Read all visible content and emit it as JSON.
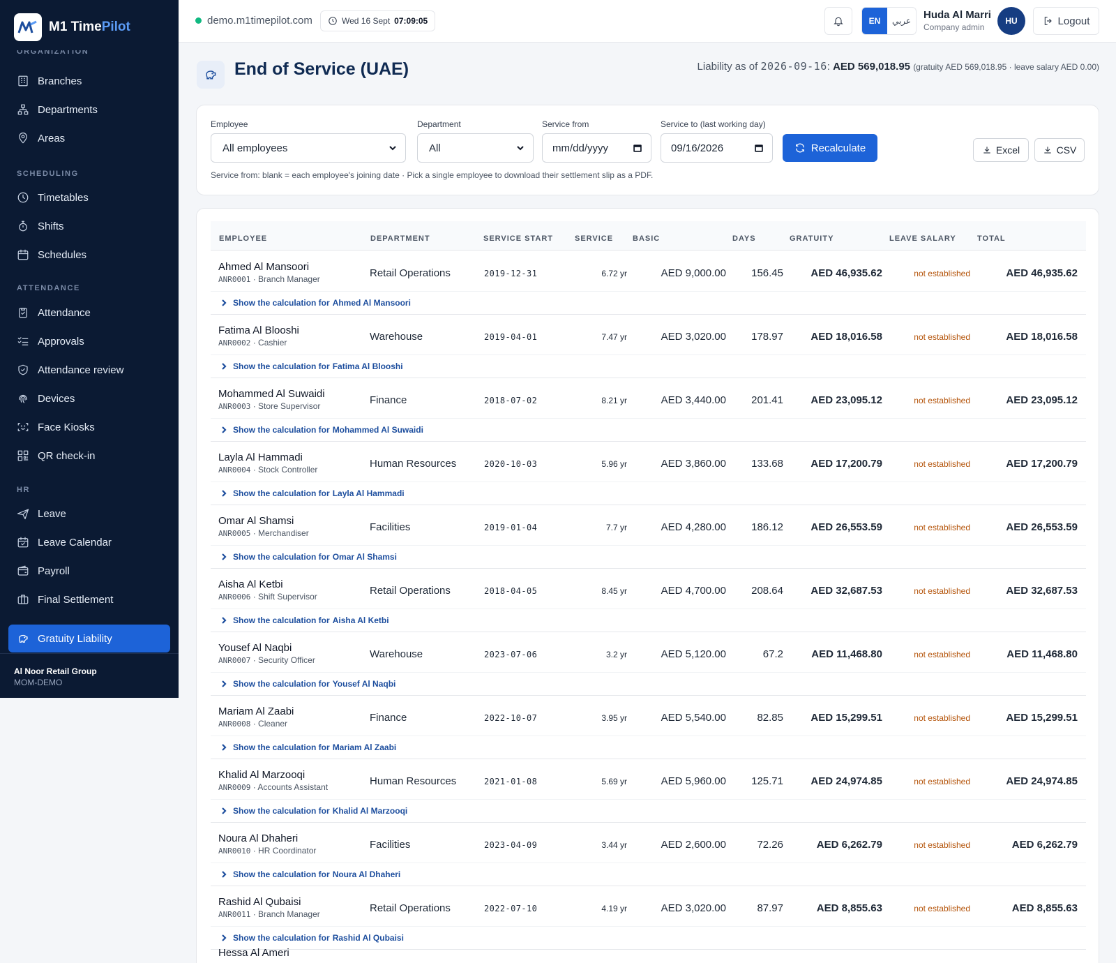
{
  "brand": {
    "name_main": "M1 Time",
    "name_accent": "Pilot"
  },
  "sidebar": {
    "clipped_section": "ORGANIZATION",
    "sections": {
      "scheduling": "SCHEDULING",
      "attendance": "ATTENDANCE",
      "hr": "HR"
    },
    "items": [
      {
        "label": "Branches"
      },
      {
        "label": "Departments"
      },
      {
        "label": "Areas"
      },
      {
        "label": "Timetables"
      },
      {
        "label": "Shifts"
      },
      {
        "label": "Schedules"
      },
      {
        "label": "Attendance"
      },
      {
        "label": "Approvals"
      },
      {
        "label": "Attendance review"
      },
      {
        "label": "Devices"
      },
      {
        "label": "Face Kiosks"
      },
      {
        "label": "QR check-in"
      },
      {
        "label": "Leave"
      },
      {
        "label": "Leave Calendar"
      },
      {
        "label": "Payroll"
      },
      {
        "label": "Final Settlement"
      },
      {
        "label": "Gratuity Liability"
      }
    ],
    "footer": {
      "org": "Al Noor Retail Group",
      "code": "MOM-DEMO"
    }
  },
  "topbar": {
    "domain": "demo.m1timepilot.com",
    "date": "Wed 16 Sept",
    "time": "07:09:05",
    "lang_en": "EN",
    "lang_ar": "عربي",
    "user_name": "Huda Al Marri",
    "user_role": "Company admin",
    "avatar": "HU",
    "logout": "Logout"
  },
  "header": {
    "title": "End of Service (UAE)",
    "liability_prefix": "Liability as of",
    "liability_date": "2026-09-16",
    "liability_total": "AED 569,018.95",
    "liability_detail": "(gratuity AED 569,018.95 · leave salary AED 0.00)"
  },
  "filters": {
    "employee_label": "Employee",
    "employee_value": "All employees",
    "department_label": "Department",
    "department_value": "All",
    "from_label": "Service from",
    "from_value": "mm/dd/yyyy",
    "to_label": "Service to (last working day)",
    "to_value": "09/16/2026",
    "recalc": "Recalculate",
    "excel": "Excel",
    "csv": "CSV",
    "hint": "Service from: blank = each employee's joining date · Pick a single employee to download their settlement slip as a PDF."
  },
  "table": {
    "headers": {
      "employee": "EMPLOYEE",
      "department": "DEPARTMENT",
      "start": "SERVICE START",
      "service": "SERVICE",
      "basic": "BASIC",
      "days": "DAYS",
      "gratuity": "GRATUITY",
      "leave": "LEAVE SALARY",
      "total": "TOTAL"
    },
    "calc_prefix": "Show the calculation for",
    "rows": [
      {
        "name": "Ahmed Al Mansoori",
        "code": "ANR0001",
        "role": "Branch Manager",
        "dept": "Retail Operations",
        "start": "2019-12-31",
        "service": "6.72 yr",
        "basic": "AED 9,000.00",
        "days": "156.45",
        "gratuity": "AED 46,935.62",
        "leave": "not established",
        "total": "AED 46,935.62"
      },
      {
        "name": "Fatima Al Blooshi",
        "code": "ANR0002",
        "role": "Cashier",
        "dept": "Warehouse",
        "start": "2019-04-01",
        "service": "7.47 yr",
        "basic": "AED 3,020.00",
        "days": "178.97",
        "gratuity": "AED 18,016.58",
        "leave": "not established",
        "total": "AED 18,016.58"
      },
      {
        "name": "Mohammed Al Suwaidi",
        "code": "ANR0003",
        "role": "Store Supervisor",
        "dept": "Finance",
        "start": "2018-07-02",
        "service": "8.21 yr",
        "basic": "AED 3,440.00",
        "days": "201.41",
        "gratuity": "AED 23,095.12",
        "leave": "not established",
        "total": "AED 23,095.12"
      },
      {
        "name": "Layla Al Hammadi",
        "code": "ANR0004",
        "role": "Stock Controller",
        "dept": "Human Resources",
        "start": "2020-10-03",
        "service": "5.96 yr",
        "basic": "AED 3,860.00",
        "days": "133.68",
        "gratuity": "AED 17,200.79",
        "leave": "not established",
        "total": "AED 17,200.79"
      },
      {
        "name": "Omar Al Shamsi",
        "code": "ANR0005",
        "role": "Merchandiser",
        "dept": "Facilities",
        "start": "2019-01-04",
        "service": "7.7 yr",
        "basic": "AED 4,280.00",
        "days": "186.12",
        "gratuity": "AED 26,553.59",
        "leave": "not established",
        "total": "AED 26,553.59"
      },
      {
        "name": "Aisha Al Ketbi",
        "code": "ANR0006",
        "role": "Shift Supervisor",
        "dept": "Retail Operations",
        "start": "2018-04-05",
        "service": "8.45 yr",
        "basic": "AED 4,700.00",
        "days": "208.64",
        "gratuity": "AED 32,687.53",
        "leave": "not established",
        "total": "AED 32,687.53"
      },
      {
        "name": "Yousef Al Naqbi",
        "code": "ANR0007",
        "role": "Security Officer",
        "dept": "Warehouse",
        "start": "2023-07-06",
        "service": "3.2 yr",
        "basic": "AED 5,120.00",
        "days": "67.2",
        "gratuity": "AED 11,468.80",
        "leave": "not established",
        "total": "AED 11,468.80"
      },
      {
        "name": "Mariam Al Zaabi",
        "code": "ANR0008",
        "role": "Cleaner",
        "dept": "Finance",
        "start": "2022-10-07",
        "service": "3.95 yr",
        "basic": "AED 5,540.00",
        "days": "82.85",
        "gratuity": "AED 15,299.51",
        "leave": "not established",
        "total": "AED 15,299.51"
      },
      {
        "name": "Khalid Al Marzooqi",
        "code": "ANR0009",
        "role": "Accounts Assistant",
        "dept": "Human Resources",
        "start": "2021-01-08",
        "service": "5.69 yr",
        "basic": "AED 5,960.00",
        "days": "125.71",
        "gratuity": "AED 24,974.85",
        "leave": "not established",
        "total": "AED 24,974.85"
      },
      {
        "name": "Noura Al Dhaheri",
        "code": "ANR0010",
        "role": "HR Coordinator",
        "dept": "Facilities",
        "start": "2023-04-09",
        "service": "3.44 yr",
        "basic": "AED 2,600.00",
        "days": "72.26",
        "gratuity": "AED 6,262.79",
        "leave": "not established",
        "total": "AED 6,262.79"
      },
      {
        "name": "Rashid Al Qubaisi",
        "code": "ANR0011",
        "role": "Branch Manager",
        "dept": "Retail Operations",
        "start": "2022-07-10",
        "service": "4.19 yr",
        "basic": "AED 3,020.00",
        "days": "87.97",
        "gratuity": "AED 8,855.63",
        "leave": "not established",
        "total": "AED 8,855.63"
      }
    ],
    "partial_row_name": "Hessa Al Ameri"
  }
}
